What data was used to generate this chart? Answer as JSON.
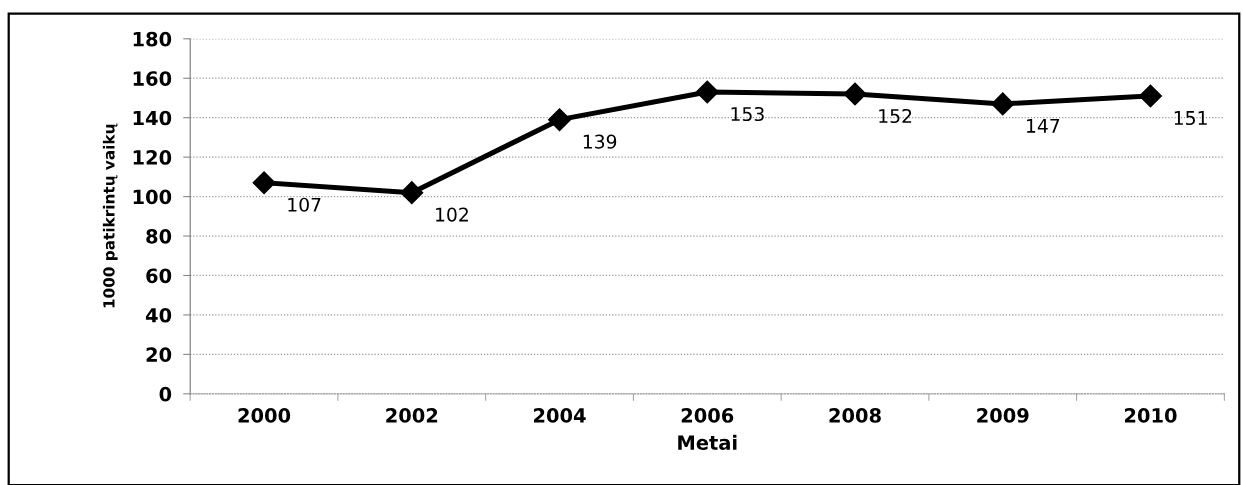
{
  "chart_data": {
    "type": "line",
    "xlabel": "Metai",
    "ylabel": "1000 patikrintų vaikų",
    "categories": [
      "2000",
      "2002",
      "2004",
      "2006",
      "2008",
      "2009",
      "2010"
    ],
    "series": [
      {
        "color": "#000000",
        "values": [
          107,
          102,
          139,
          153,
          152,
          147,
          151
        ]
      }
    ],
    "ylim": [
      0,
      180
    ],
    "yticks": [
      0,
      20,
      40,
      60,
      80,
      100,
      120,
      140,
      160,
      180
    ],
    "grid": "y",
    "marker": "diamond",
    "line_style": "solid",
    "data_labels": true
  }
}
